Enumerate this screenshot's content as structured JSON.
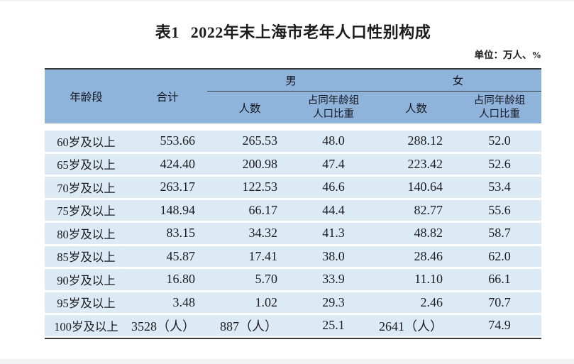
{
  "page": {
    "title": {
      "label": "表1",
      "text": "2022年末上海市老年人口性别构成"
    },
    "unit_note": "单位：万人、%"
  },
  "colors": {
    "header_bg": "#8FB4DC",
    "row_bg": "#DCEAF5",
    "line": "#3A3A3A",
    "ink": "#1C1C1C"
  },
  "table": {
    "header": {
      "age": "年龄段",
      "total": "合计",
      "male_group": "男",
      "female_group": "女",
      "male_count": "人数",
      "male_share_line1": "占同年龄组",
      "male_share_line2": "人口比重",
      "female_count": "人数",
      "female_share_line1": "占同年龄组",
      "female_share_line2": "人口比重"
    },
    "rows": [
      {
        "age": "60岁及以上",
        "total": "553.66",
        "male_count": "265.53",
        "male_share": "48.0",
        "female_count": "288.12",
        "female_share": "52.0"
      },
      {
        "age": "65岁及以上",
        "total": "424.40",
        "male_count": "200.98",
        "male_share": "47.4",
        "female_count": "223.42",
        "female_share": "52.6"
      },
      {
        "age": "70岁及以上",
        "total": "263.17",
        "male_count": "122.53",
        "male_share": "46.6",
        "female_count": "140.64",
        "female_share": "53.4"
      },
      {
        "age": "75岁及以上",
        "total": "148.94",
        "male_count": "66.17",
        "male_share": "44.4",
        "female_count": "82.77",
        "female_share": "55.6"
      },
      {
        "age": "80岁及以上",
        "total": "83.15",
        "male_count": "34.32",
        "male_share": "41.3",
        "female_count": "48.82",
        "female_share": "58.7"
      },
      {
        "age": "85岁及以上",
        "total": "45.87",
        "male_count": "17.41",
        "male_share": "38.0",
        "female_count": "28.46",
        "female_share": "62.0"
      },
      {
        "age": "90岁及以上",
        "total": "16.80",
        "male_count": "5.70",
        "male_share": "33.9",
        "female_count": "11.10",
        "female_share": "66.1"
      },
      {
        "age": "95岁及以上",
        "total": "3.48",
        "male_count": "1.02",
        "male_share": "29.3",
        "female_count": "2.46",
        "female_share": "70.7"
      },
      {
        "age": "100岁及以上",
        "total": "3528（人）",
        "male_count": "887（人）",
        "male_share": "25.1",
        "female_count": "2641（人）",
        "female_share": "74.9"
      }
    ]
  }
}
